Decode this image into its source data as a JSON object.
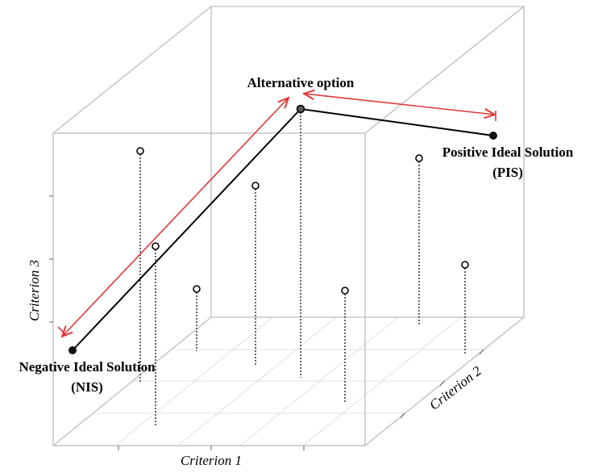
{
  "labels": {
    "alternative": "Alternative option",
    "pis": {
      "name": "Positive Ideal Solution",
      "abbr": "(PIS)"
    },
    "nis": {
      "name": "Negative Ideal Solution",
      "abbr": "(NIS)"
    }
  },
  "axes": {
    "x": "Criterion 1",
    "y": "Criterion 2",
    "z": "Criterion 3"
  }
}
